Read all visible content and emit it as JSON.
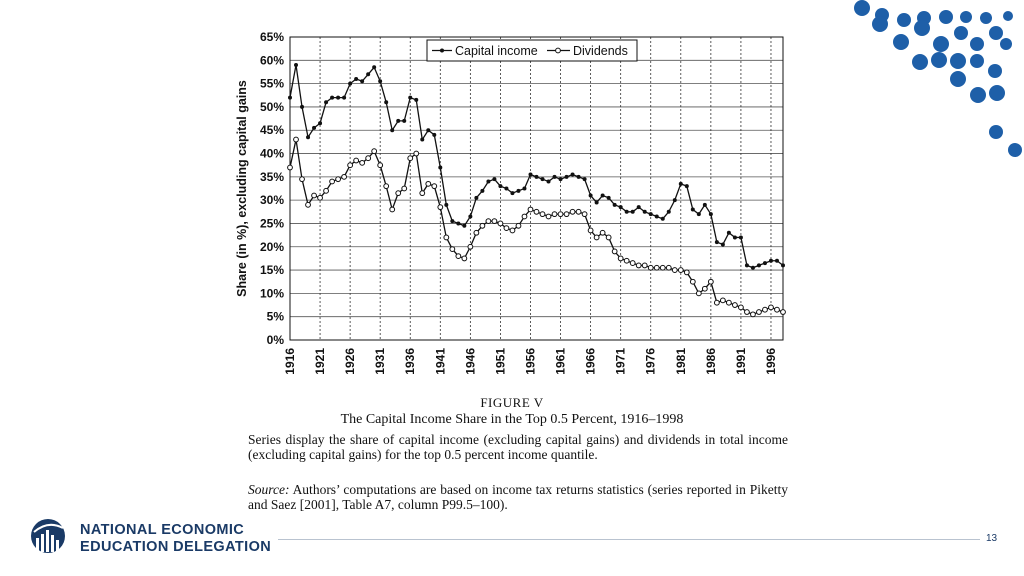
{
  "chart_data": {
    "type": "line",
    "title": "",
    "ylabel": "Share (in %), excluding capital gains",
    "xlabel": "",
    "ylim": [
      0,
      65
    ],
    "xlim": [
      1916,
      1998
    ],
    "y_ticks": [
      "0%",
      "5%",
      "10%",
      "15%",
      "20%",
      "25%",
      "30%",
      "35%",
      "40%",
      "45%",
      "50%",
      "55%",
      "60%",
      "65%"
    ],
    "x_ticks": [
      "1916",
      "1921",
      "1926",
      "1931",
      "1936",
      "1941",
      "1946",
      "1951",
      "1956",
      "1961",
      "1966",
      "1971",
      "1976",
      "1981",
      "1986",
      "1991",
      "1996"
    ],
    "grid": true,
    "legend_position": "top",
    "x": [
      1916,
      1917,
      1918,
      1919,
      1920,
      1921,
      1922,
      1923,
      1924,
      1925,
      1926,
      1927,
      1928,
      1929,
      1930,
      1931,
      1932,
      1933,
      1934,
      1935,
      1936,
      1937,
      1938,
      1939,
      1940,
      1941,
      1942,
      1943,
      1944,
      1945,
      1946,
      1947,
      1948,
      1949,
      1950,
      1951,
      1952,
      1953,
      1954,
      1955,
      1956,
      1957,
      1958,
      1959,
      1960,
      1961,
      1962,
      1963,
      1964,
      1965,
      1966,
      1967,
      1968,
      1969,
      1970,
      1971,
      1972,
      1973,
      1974,
      1975,
      1976,
      1977,
      1978,
      1979,
      1980,
      1981,
      1982,
      1983,
      1984,
      1985,
      1986,
      1987,
      1988,
      1989,
      1990,
      1991,
      1992,
      1993,
      1994,
      1995,
      1996,
      1997,
      1998
    ],
    "series": [
      {
        "name": "Capital income",
        "marker": "filled-dot",
        "values": [
          52,
          59,
          50,
          43.5,
          45.5,
          46.5,
          51,
          52,
          52,
          52,
          55,
          56,
          55.5,
          57,
          58.5,
          55.5,
          51,
          45,
          47,
          47,
          52,
          51.5,
          43,
          45,
          44,
          37,
          29,
          25.5,
          25,
          24.5,
          26.5,
          30.5,
          32,
          34,
          34.5,
          33,
          32.5,
          31.5,
          32,
          32.5,
          35.5,
          35,
          34.5,
          34,
          35,
          34.5,
          35,
          35.5,
          35,
          34.5,
          31,
          29.5,
          31,
          30.5,
          29,
          28.5,
          27.5,
          27.5,
          28.5,
          27.5,
          27,
          26.5,
          26,
          27.5,
          30,
          33.5,
          33,
          28,
          27,
          29,
          27,
          21,
          20.5,
          23,
          22,
          22,
          16,
          15.5,
          16,
          16.5,
          17,
          17,
          16
        ]
      },
      {
        "name": "Dividends",
        "marker": "open-dot",
        "values": [
          37,
          43,
          34.5,
          29,
          31,
          30.5,
          32,
          34,
          34.5,
          35,
          37.5,
          38.5,
          38,
          39,
          40.5,
          37.5,
          33,
          28,
          31.5,
          32.5,
          39,
          40,
          31.5,
          33.5,
          33,
          28.5,
          22,
          19.5,
          18,
          17.5,
          20,
          23,
          24.5,
          25.5,
          25.5,
          25,
          24,
          23.5,
          24.5,
          26.5,
          28,
          27.5,
          27,
          26.5,
          27,
          27,
          27,
          27.5,
          27.5,
          27,
          23.5,
          22,
          23,
          22,
          19,
          17.5,
          17,
          16.5,
          16,
          16,
          15.5,
          15.5,
          15.5,
          15.5,
          15,
          15,
          14.5,
          12.5,
          10,
          11,
          12.5,
          8,
          8.5,
          8,
          7.5,
          7,
          6,
          5.5,
          6,
          6.5,
          7,
          6.5,
          6
        ]
      }
    ]
  },
  "figure": {
    "label": "FIGURE V",
    "title": "The Capital Income Share in the Top 0.5 Percent, 1916–1998",
    "description": "Series display the share of capital income (excluding capital gains) and dividends in total income (excluding capital gains) for the top 0.5 percent income quantile.",
    "source_label": "Source:",
    "source_text": "Authors’ computations are based on income tax returns statistics (series reported in Piketty and Saez [2001], Table A7, column P99.5–100)."
  },
  "footer": {
    "org_line1": "NATIONAL ECONOMIC",
    "org_line2": "EDUCATION DELEGATION",
    "page_number": "13"
  },
  "colors": {
    "brand_navy": "#1a3a66",
    "dot_blue": "#1e5fa8",
    "line_black": "#111111"
  }
}
